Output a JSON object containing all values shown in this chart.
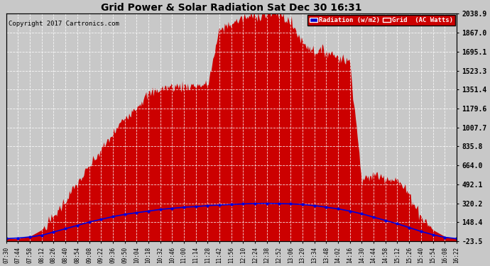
{
  "title": "Grid Power & Solar Radiation Sat Dec 30 16:31",
  "copyright": "Copyright 2017 Cartronics.com",
  "background_color": "#c8c8c8",
  "plot_bg_color": "#c8c8c8",
  "fill_color": "#cc0000",
  "line_color": "#0000dd",
  "ytick_labels": [
    "-23.5",
    "148.4",
    "320.2",
    "492.1",
    "664.0",
    "835.8",
    "1007.7",
    "1179.6",
    "1351.4",
    "1523.3",
    "1695.1",
    "1867.0",
    "2038.9"
  ],
  "ytick_values": [
    -23.5,
    148.4,
    320.2,
    492.1,
    664.0,
    835.8,
    1007.7,
    1179.6,
    1351.4,
    1523.3,
    1695.1,
    1867.0,
    2038.9
  ],
  "ymin": -23.5,
  "ymax": 2038.9,
  "x_labels": [
    "07:30",
    "07:44",
    "07:58",
    "08:12",
    "08:26",
    "08:40",
    "08:54",
    "09:08",
    "09:22",
    "09:36",
    "09:50",
    "10:04",
    "10:18",
    "10:32",
    "10:46",
    "11:00",
    "11:14",
    "11:28",
    "11:42",
    "11:56",
    "12:10",
    "12:24",
    "12:38",
    "12:52",
    "13:06",
    "13:20",
    "13:34",
    "13:48",
    "14:02",
    "14:16",
    "14:30",
    "14:44",
    "14:58",
    "15:12",
    "15:26",
    "15:40",
    "15:54",
    "16:08",
    "16:22"
  ],
  "grid_shape": [
    0,
    0,
    20,
    80,
    200,
    350,
    500,
    650,
    800,
    950,
    1100,
    1200,
    1310,
    1360,
    1380,
    1380,
    1390,
    1395,
    1900,
    1950,
    2000,
    2020,
    2038,
    2038,
    1960,
    1780,
    1700,
    1700,
    1650,
    1600,
    520,
    580,
    560,
    530,
    400,
    200,
    80,
    20,
    0
  ],
  "radiation_shape": [
    0,
    5,
    15,
    30,
    60,
    90,
    120,
    150,
    175,
    200,
    220,
    235,
    250,
    265,
    275,
    285,
    290,
    300,
    305,
    310,
    315,
    318,
    320,
    318,
    315,
    310,
    300,
    285,
    270,
    250,
    225,
    195,
    165,
    135,
    100,
    65,
    35,
    12,
    0
  ]
}
